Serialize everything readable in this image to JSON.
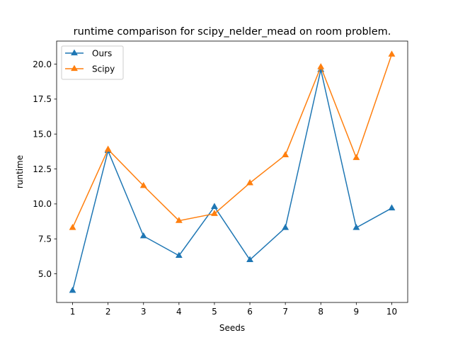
{
  "chart_data": {
    "type": "line",
    "title": "runtime comparison for scipy_nelder_mead on room problem.",
    "xlabel": "Seeds",
    "ylabel": "runtime",
    "x": [
      1,
      2,
      3,
      4,
      5,
      6,
      7,
      8,
      9,
      10
    ],
    "x_ticks": [
      "1",
      "2",
      "3",
      "4",
      "5",
      "6",
      "7",
      "8",
      "9",
      "10"
    ],
    "y_ticks": [
      "5.0",
      "7.5",
      "10.0",
      "12.5",
      "15.0",
      "17.5",
      "20.0"
    ],
    "xlim": [
      0.55,
      10.45
    ],
    "ylim": [
      2.95,
      21.65
    ],
    "grid": false,
    "legend_position": "upper left",
    "marker": "triangle-up",
    "series": [
      {
        "name": "Ours",
        "color": "#1f77b4",
        "values": [
          3.8,
          13.8,
          7.7,
          6.3,
          9.8,
          6.0,
          8.3,
          19.6,
          8.3,
          9.7
        ]
      },
      {
        "name": "Scipy",
        "color": "#ff7f0e",
        "values": [
          8.3,
          13.9,
          11.3,
          8.8,
          9.3,
          11.5,
          13.5,
          19.8,
          13.3,
          20.7
        ]
      }
    ]
  }
}
